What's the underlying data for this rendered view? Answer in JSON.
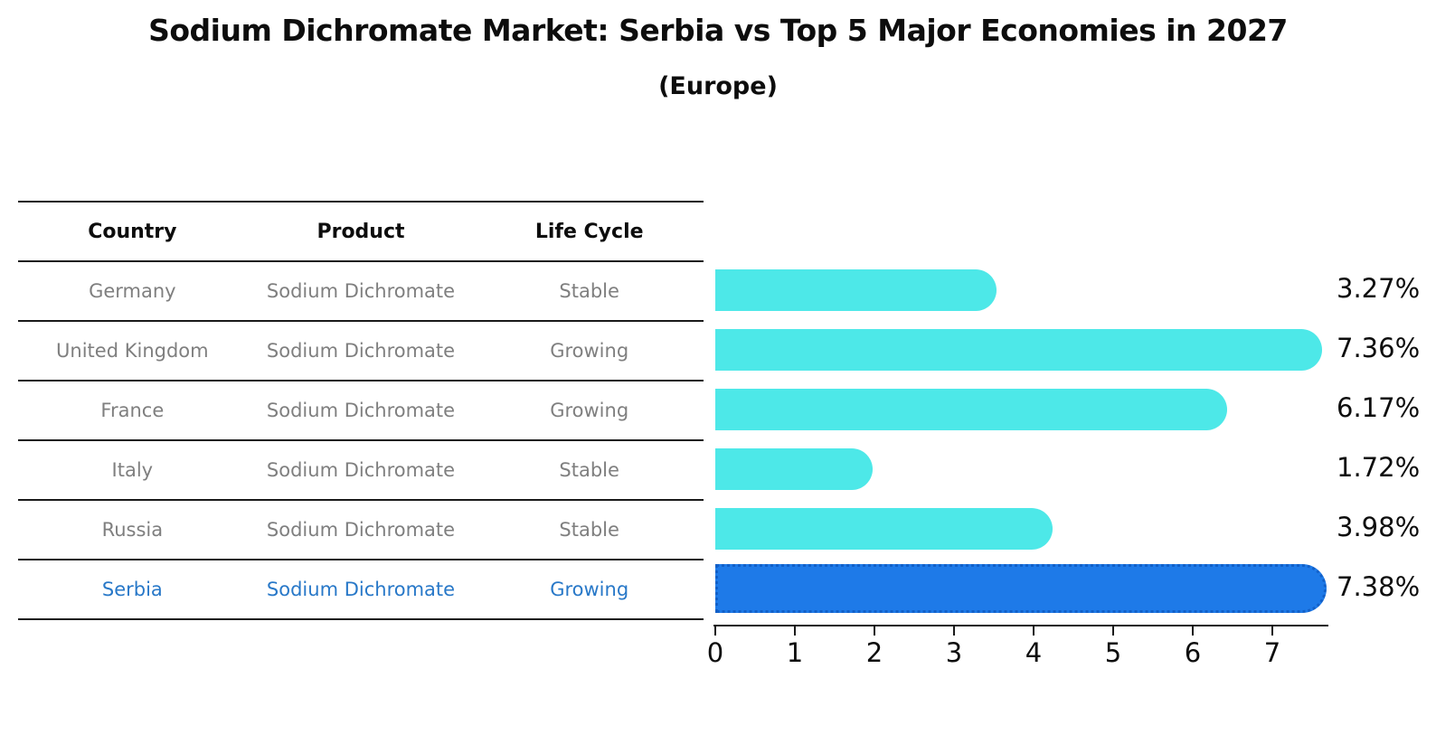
{
  "title": "Sodium Dichromate Market: Serbia vs Top 5 Major Economies in 2027",
  "subtitle": "(Europe)",
  "table": {
    "headers": [
      "Country",
      "Product",
      "Life Cycle"
    ],
    "rows": [
      [
        "Germany",
        "Sodium Dichromate",
        "Stable"
      ],
      [
        "United Kingdom",
        "Sodium Dichromate",
        "Growing"
      ],
      [
        "France",
        "Sodium Dichromate",
        "Growing"
      ],
      [
        "Italy",
        "Sodium Dichromate",
        "Stable"
      ],
      [
        "Russia",
        "Sodium Dichromate",
        "Stable"
      ],
      [
        "Serbia",
        "Sodium Dichromate",
        "Growing"
      ]
    ],
    "highlight_row_index": 5,
    "body_text_color": "#7f7f7f",
    "header_text_color": "#0d0d0d",
    "highlight_text_color": "#2878c8"
  },
  "chart_data": {
    "type": "bar",
    "orientation": "horizontal",
    "title": "Sodium Dichromate Market: Serbia vs Top 5 Major Economies in 2027",
    "subtitle": "(Europe)",
    "categories": [
      "Germany",
      "United Kingdom",
      "France",
      "Italy",
      "Russia",
      "Serbia"
    ],
    "values": [
      3.27,
      7.36,
      6.17,
      1.72,
      3.98,
      7.38
    ],
    "value_labels": [
      "3.27%",
      "7.36%",
      "6.17%",
      "1.72%",
      "3.98%",
      "7.38%"
    ],
    "xlabel": "",
    "ylabel": "",
    "xlim": [
      0,
      7.7
    ],
    "xticks": [
      0,
      1,
      2,
      3,
      4,
      5,
      6,
      7
    ],
    "grid": false,
    "legend_visible": false,
    "bar_color": "#4de8e8",
    "highlight_index": 5,
    "highlight_bar_color": "#1e7ae8",
    "highlight_border_color": "#1260c8",
    "axis_color": "#1a1a1a"
  }
}
